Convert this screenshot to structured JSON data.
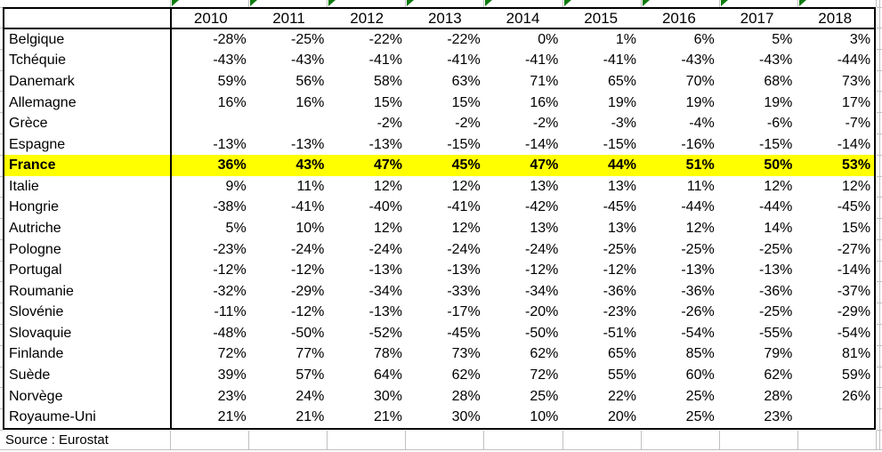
{
  "sheet": {
    "years": [
      "2010",
      "2011",
      "2012",
      "2013",
      "2014",
      "2015",
      "2016",
      "2017",
      "2018"
    ],
    "rows": [
      {
        "country": "Belgique",
        "values": [
          "-28%",
          "-25%",
          "-22%",
          "-22%",
          "0%",
          "1%",
          "6%",
          "5%",
          "3%"
        ],
        "highlight": false
      },
      {
        "country": "Tchéquie",
        "values": [
          "-43%",
          "-43%",
          "-41%",
          "-41%",
          "-41%",
          "-41%",
          "-43%",
          "-43%",
          "-44%"
        ],
        "highlight": false
      },
      {
        "country": "Danemark",
        "values": [
          "59%",
          "56%",
          "58%",
          "63%",
          "71%",
          "65%",
          "70%",
          "68%",
          "73%"
        ],
        "highlight": false
      },
      {
        "country": "Allemagne",
        "values": [
          "16%",
          "16%",
          "15%",
          "15%",
          "16%",
          "19%",
          "19%",
          "19%",
          "17%"
        ],
        "highlight": false
      },
      {
        "country": "Grèce",
        "values": [
          "",
          "",
          "-2%",
          "-2%",
          "-2%",
          "-3%",
          "-4%",
          "-6%",
          "-7%"
        ],
        "highlight": false
      },
      {
        "country": "Espagne",
        "values": [
          "-13%",
          "-13%",
          "-13%",
          "-15%",
          "-14%",
          "-15%",
          "-16%",
          "-15%",
          "-14%"
        ],
        "highlight": false
      },
      {
        "country": "France",
        "values": [
          "36%",
          "43%",
          "47%",
          "45%",
          "47%",
          "44%",
          "51%",
          "50%",
          "53%"
        ],
        "highlight": true
      },
      {
        "country": "Italie",
        "values": [
          "9%",
          "11%",
          "12%",
          "12%",
          "13%",
          "13%",
          "11%",
          "12%",
          "12%"
        ],
        "highlight": false
      },
      {
        "country": "Hongrie",
        "values": [
          "-38%",
          "-41%",
          "-40%",
          "-41%",
          "-42%",
          "-45%",
          "-44%",
          "-44%",
          "-45%"
        ],
        "highlight": false
      },
      {
        "country": "Autriche",
        "values": [
          "5%",
          "10%",
          "12%",
          "12%",
          "13%",
          "13%",
          "12%",
          "14%",
          "15%"
        ],
        "highlight": false
      },
      {
        "country": "Pologne",
        "values": [
          "-23%",
          "-24%",
          "-24%",
          "-24%",
          "-24%",
          "-25%",
          "-25%",
          "-25%",
          "-27%"
        ],
        "highlight": false
      },
      {
        "country": "Portugal",
        "values": [
          "-12%",
          "-12%",
          "-13%",
          "-13%",
          "-12%",
          "-12%",
          "-13%",
          "-13%",
          "-14%"
        ],
        "highlight": false
      },
      {
        "country": "Roumanie",
        "values": [
          "-32%",
          "-29%",
          "-34%",
          "-33%",
          "-34%",
          "-36%",
          "-36%",
          "-36%",
          "-37%"
        ],
        "highlight": false
      },
      {
        "country": "Slovénie",
        "values": [
          "-11%",
          "-12%",
          "-13%",
          "-17%",
          "-20%",
          "-23%",
          "-26%",
          "-25%",
          "-29%"
        ],
        "highlight": false
      },
      {
        "country": "Slovaquie",
        "values": [
          "-48%",
          "-50%",
          "-52%",
          "-45%",
          "-50%",
          "-51%",
          "-54%",
          "-55%",
          "-54%"
        ],
        "highlight": false
      },
      {
        "country": "Finlande",
        "values": [
          "72%",
          "77%",
          "78%",
          "73%",
          "62%",
          "65%",
          "85%",
          "79%",
          "81%"
        ],
        "highlight": false
      },
      {
        "country": "Suède",
        "values": [
          "39%",
          "57%",
          "64%",
          "62%",
          "72%",
          "55%",
          "60%",
          "62%",
          "59%"
        ],
        "highlight": false
      },
      {
        "country": "Norvège",
        "values": [
          "23%",
          "24%",
          "30%",
          "28%",
          "25%",
          "22%",
          "25%",
          "28%",
          "26%"
        ],
        "highlight": false
      },
      {
        "country": "Royaume-Uni",
        "values": [
          "21%",
          "21%",
          "21%",
          "30%",
          "10%",
          "20%",
          "25%",
          "23%",
          ""
        ],
        "highlight": false
      }
    ],
    "source": "Source : Eurostat",
    "icons": {
      "error_indicator": "green-triangle"
    },
    "colors": {
      "highlight": "#ffff00",
      "gridline": "#c0c0c0",
      "border": "#000000",
      "indicator_green": "#0f7b0f"
    }
  }
}
